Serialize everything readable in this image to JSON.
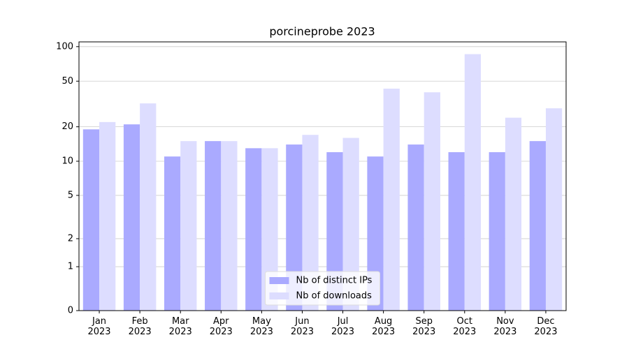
{
  "chart_data": {
    "type": "bar",
    "title": "porcineprobe 2023",
    "categories": [
      "Jan\n2023",
      "Feb\n2023",
      "Mar\n2023",
      "Apr\n2023",
      "May\n2023",
      "Jun\n2023",
      "Jul\n2023",
      "Aug\n2023",
      "Sep\n2023",
      "Oct\n2023",
      "Nov\n2023",
      "Dec\n2023"
    ],
    "series": [
      {
        "name": "Nb of distinct IPs",
        "color": "#aaaaff",
        "values": [
          19,
          21,
          11,
          15,
          13,
          14,
          12,
          11,
          14,
          12,
          12,
          15
        ]
      },
      {
        "name": "Nb of downloads",
        "color": "#ddddff",
        "values": [
          22,
          32,
          15,
          15,
          13,
          17,
          16,
          43,
          40,
          86,
          24,
          29
        ]
      }
    ],
    "yscale": "asinh",
    "ylim": [
      0,
      110
    ],
    "yticks": [
      0,
      1,
      2,
      5,
      10,
      20,
      50,
      100
    ],
    "grid": true,
    "legend": "lower center"
  }
}
